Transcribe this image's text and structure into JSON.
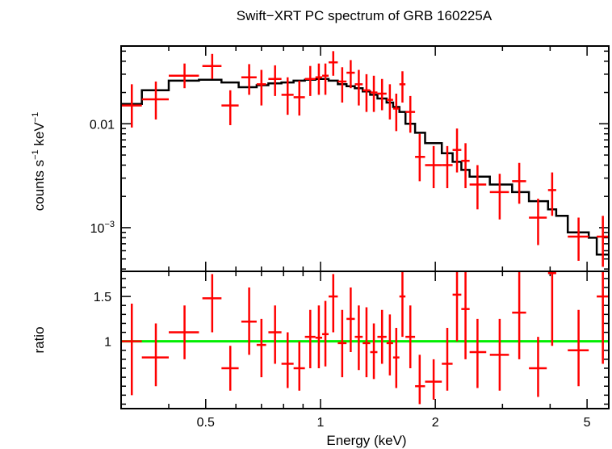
{
  "chart_data": [
    {
      "panel": "spectrum",
      "type": "scatter",
      "title": "Swift−XRT PC spectrum of GRB 160225A",
      "ylabel": {
        "base": "counts s",
        "exp1": "−1",
        "mid": " keV",
        "exp2": "−1"
      },
      "x_scale": "log",
      "y_scale": "log",
      "xlim": [
        0.3,
        5.7
      ],
      "ylim": [
        0.00038,
        0.056
      ],
      "y_tick_labels": [
        {
          "value": 0.01,
          "label": "0.01"
        },
        {
          "value": 0.001,
          "label": "10",
          "sup": "−3"
        }
      ],
      "series": [
        {
          "kind": "data",
          "color": "#ff0000",
          "points": [
            {
              "x": 0.32,
              "xlo": 0.3,
              "xhi": 0.34,
              "y": 0.015,
              "ylo": 0.0092,
              "yhi": 0.024
            },
            {
              "x": 0.37,
              "xlo": 0.34,
              "xhi": 0.4,
              "y": 0.0172,
              "ylo": 0.011,
              "yhi": 0.0255
            },
            {
              "x": 0.44,
              "xlo": 0.4,
              "xhi": 0.48,
              "y": 0.029,
              "ylo": 0.022,
              "yhi": 0.038
            },
            {
              "x": 0.52,
              "xlo": 0.49,
              "xhi": 0.55,
              "y": 0.036,
              "ylo": 0.027,
              "yhi": 0.047
            },
            {
              "x": 0.58,
              "xlo": 0.55,
              "xhi": 0.61,
              "y": 0.015,
              "ylo": 0.0097,
              "yhi": 0.021
            },
            {
              "x": 0.65,
              "xlo": 0.62,
              "xhi": 0.68,
              "y": 0.028,
              "ylo": 0.019,
              "yhi": 0.0375
            },
            {
              "x": 0.7,
              "xlo": 0.68,
              "xhi": 0.72,
              "y": 0.024,
              "ylo": 0.015,
              "yhi": 0.033
            },
            {
              "x": 0.76,
              "xlo": 0.73,
              "xhi": 0.79,
              "y": 0.027,
              "ylo": 0.0185,
              "yhi": 0.0365
            },
            {
              "x": 0.82,
              "xlo": 0.79,
              "xhi": 0.85,
              "y": 0.019,
              "ylo": 0.0122,
              "yhi": 0.028
            },
            {
              "x": 0.88,
              "xlo": 0.85,
              "xhi": 0.91,
              "y": 0.018,
              "ylo": 0.012,
              "yhi": 0.026
            },
            {
              "x": 0.94,
              "xlo": 0.91,
              "xhi": 0.97,
              "y": 0.027,
              "ylo": 0.0185,
              "yhi": 0.036
            },
            {
              "x": 0.99,
              "xlo": 0.97,
              "xhi": 1.01,
              "y": 0.028,
              "ylo": 0.019,
              "yhi": 0.038
            },
            {
              "x": 1.03,
              "xlo": 1.01,
              "xhi": 1.05,
              "y": 0.029,
              "ylo": 0.019,
              "yhi": 0.038
            },
            {
              "x": 1.08,
              "xlo": 1.05,
              "xhi": 1.11,
              "y": 0.039,
              "ylo": 0.029,
              "yhi": 0.05
            },
            {
              "x": 1.14,
              "xlo": 1.11,
              "xhi": 1.17,
              "y": 0.0255,
              "ylo": 0.016,
              "yhi": 0.035
            },
            {
              "x": 1.2,
              "xlo": 1.17,
              "xhi": 1.23,
              "y": 0.031,
              "ylo": 0.022,
              "yhi": 0.041
            },
            {
              "x": 1.26,
              "xlo": 1.23,
              "xhi": 1.29,
              "y": 0.024,
              "ylo": 0.015,
              "yhi": 0.033
            },
            {
              "x": 1.32,
              "xlo": 1.29,
              "xhi": 1.35,
              "y": 0.021,
              "ylo": 0.013,
              "yhi": 0.03
            },
            {
              "x": 1.38,
              "xlo": 1.35,
              "xhi": 1.41,
              "y": 0.02,
              "ylo": 0.013,
              "yhi": 0.029
            },
            {
              "x": 1.45,
              "xlo": 1.41,
              "xhi": 1.49,
              "y": 0.0195,
              "ylo": 0.0135,
              "yhi": 0.027
            },
            {
              "x": 1.52,
              "xlo": 1.49,
              "xhi": 1.55,
              "y": 0.017,
              "ylo": 0.011,
              "yhi": 0.024
            },
            {
              "x": 1.58,
              "xlo": 1.55,
              "xhi": 1.61,
              "y": 0.014,
              "ylo": 0.0085,
              "yhi": 0.0195
            },
            {
              "x": 1.64,
              "xlo": 1.61,
              "xhi": 1.67,
              "y": 0.024,
              "ylo": 0.016,
              "yhi": 0.032
            },
            {
              "x": 1.72,
              "xlo": 1.67,
              "xhi": 1.77,
              "y": 0.013,
              "ylo": 0.0082,
              "yhi": 0.0185
            },
            {
              "x": 1.82,
              "xlo": 1.77,
              "xhi": 1.88,
              "y": 0.0048,
              "ylo": 0.0028,
              "yhi": 0.008
            },
            {
              "x": 1.98,
              "xlo": 1.88,
              "xhi": 2.08,
              "y": 0.004,
              "ylo": 0.0024,
              "yhi": 0.0061
            },
            {
              "x": 2.15,
              "xlo": 2.08,
              "xhi": 2.22,
              "y": 0.004,
              "ylo": 0.0024,
              "yhi": 0.0061
            },
            {
              "x": 2.28,
              "xlo": 2.22,
              "xhi": 2.34,
              "y": 0.0056,
              "ylo": 0.0034,
              "yhi": 0.009
            },
            {
              "x": 2.4,
              "xlo": 2.34,
              "xhi": 2.46,
              "y": 0.0044,
              "ylo": 0.0024,
              "yhi": 0.0065
            },
            {
              "x": 2.58,
              "xlo": 2.46,
              "xhi": 2.72,
              "y": 0.0026,
              "ylo": 0.0015,
              "yhi": 0.004
            },
            {
              "x": 2.95,
              "xlo": 2.78,
              "xhi": 3.12,
              "y": 0.0022,
              "ylo": 0.0012,
              "yhi": 0.0033
            },
            {
              "x": 3.32,
              "xlo": 3.18,
              "xhi": 3.46,
              "y": 0.0028,
              "ylo": 0.0017,
              "yhi": 0.0042
            },
            {
              "x": 3.72,
              "xlo": 3.52,
              "xhi": 3.92,
              "y": 0.00125,
              "ylo": 0.00068,
              "yhi": 0.0019
            },
            {
              "x": 4.05,
              "xlo": 3.95,
              "xhi": 4.15,
              "y": 0.0023,
              "ylo": 0.0013,
              "yhi": 0.0034
            },
            {
              "x": 4.75,
              "xlo": 4.45,
              "xhi": 5.05,
              "y": 0.00082,
              "ylo": 0.00048,
              "yhi": 0.00125
            },
            {
              "x": 5.5,
              "xlo": 5.3,
              "xhi": 5.7,
              "y": 0.00082,
              "ylo": 0.00042,
              "yhi": 0.0013
            }
          ]
        },
        {
          "kind": "model",
          "color": "#000000",
          "step_edges": [
            0.3,
            0.34,
            0.4,
            0.48,
            0.55,
            0.61,
            0.68,
            0.73,
            0.79,
            0.85,
            0.91,
            0.97,
            1.05,
            1.11,
            1.17,
            1.23,
            1.29,
            1.35,
            1.41,
            1.49,
            1.55,
            1.61,
            1.67,
            1.77,
            1.88,
            2.08,
            2.22,
            2.34,
            2.46,
            2.72,
            2.78,
            3.12,
            3.18,
            3.46,
            3.52,
            3.92,
            3.95,
            4.15,
            4.45,
            5.05,
            5.3,
            5.7
          ],
          "step_values": [
            0.0155,
            0.021,
            0.026,
            0.0265,
            0.025,
            0.0225,
            0.0235,
            0.0245,
            0.025,
            0.026,
            0.0265,
            0.027,
            0.026,
            0.024,
            0.023,
            0.022,
            0.0205,
            0.019,
            0.0175,
            0.016,
            0.0145,
            0.013,
            0.01,
            0.0082,
            0.0065,
            0.0052,
            0.0043,
            0.0036,
            0.0031,
            0.0031,
            0.0026,
            0.0026,
            0.0022,
            0.0022,
            0.0018,
            0.0018,
            0.0015,
            0.0013,
            0.0009,
            0.0008,
            0.00055
          ]
        }
      ]
    },
    {
      "panel": "ratio",
      "type": "scatter",
      "xlabel": "Energy (keV)",
      "ylabel": "ratio",
      "x_scale": "log",
      "y_scale": "linear",
      "xlim": [
        0.3,
        5.7
      ],
      "ylim": [
        0.25,
        1.78
      ],
      "x_tick_labels": [
        {
          "value": 0.5,
          "label": "0.5"
        },
        {
          "value": 1,
          "label": "1"
        },
        {
          "value": 2,
          "label": "2"
        },
        {
          "value": 5,
          "label": "5"
        }
      ],
      "y_tick_labels": [
        {
          "value": 1,
          "label": "1"
        },
        {
          "value": 1.5,
          "label": "1.5"
        }
      ],
      "reference_line": {
        "y": 1,
        "color": "#00ee00"
      },
      "series": [
        {
          "kind": "data",
          "color": "#ff0000",
          "points": [
            {
              "x": 0.32,
              "xlo": 0.3,
              "xhi": 0.34,
              "y": 1.0,
              "ylo": 0.4,
              "yhi": 1.42
            },
            {
              "x": 0.37,
              "xlo": 0.34,
              "xhi": 0.4,
              "y": 0.82,
              "ylo": 0.5,
              "yhi": 1.2
            },
            {
              "x": 0.44,
              "xlo": 0.4,
              "xhi": 0.48,
              "y": 1.1,
              "ylo": 0.8,
              "yhi": 1.4
            },
            {
              "x": 0.52,
              "xlo": 0.49,
              "xhi": 0.55,
              "y": 1.48,
              "ylo": 1.1,
              "yhi": 1.75
            },
            {
              "x": 0.58,
              "xlo": 0.55,
              "xhi": 0.61,
              "y": 0.7,
              "ylo": 0.45,
              "yhi": 0.95
            },
            {
              "x": 0.65,
              "xlo": 0.62,
              "xhi": 0.68,
              "y": 1.22,
              "ylo": 0.85,
              "yhi": 1.6
            },
            {
              "x": 0.7,
              "xlo": 0.68,
              "xhi": 0.72,
              "y": 0.96,
              "ylo": 0.6,
              "yhi": 1.25
            },
            {
              "x": 0.76,
              "xlo": 0.73,
              "xhi": 0.79,
              "y": 1.1,
              "ylo": 0.75,
              "yhi": 1.4
            },
            {
              "x": 0.82,
              "xlo": 0.79,
              "xhi": 0.85,
              "y": 0.75,
              "ylo": 0.48,
              "yhi": 1.1
            },
            {
              "x": 0.88,
              "xlo": 0.85,
              "xhi": 0.91,
              "y": 0.7,
              "ylo": 0.45,
              "yhi": 1.0
            },
            {
              "x": 0.94,
              "xlo": 0.91,
              "xhi": 0.97,
              "y": 1.05,
              "ylo": 0.7,
              "yhi": 1.35
            },
            {
              "x": 0.99,
              "xlo": 0.97,
              "xhi": 1.01,
              "y": 1.04,
              "ylo": 0.7,
              "yhi": 1.4
            },
            {
              "x": 1.03,
              "xlo": 1.01,
              "xhi": 1.05,
              "y": 1.08,
              "ylo": 0.72,
              "yhi": 1.45
            },
            {
              "x": 1.08,
              "xlo": 1.05,
              "xhi": 1.11,
              "y": 1.5,
              "ylo": 1.1,
              "yhi": 1.75
            },
            {
              "x": 1.14,
              "xlo": 1.11,
              "xhi": 1.17,
              "y": 0.98,
              "ylo": 0.6,
              "yhi": 1.35
            },
            {
              "x": 1.2,
              "xlo": 1.17,
              "xhi": 1.23,
              "y": 1.25,
              "ylo": 0.88,
              "yhi": 1.6
            },
            {
              "x": 1.26,
              "xlo": 1.23,
              "xhi": 1.29,
              "y": 1.05,
              "ylo": 0.68,
              "yhi": 1.4
            },
            {
              "x": 1.32,
              "xlo": 1.29,
              "xhi": 1.35,
              "y": 0.98,
              "ylo": 0.6,
              "yhi": 1.38
            },
            {
              "x": 1.38,
              "xlo": 1.35,
              "xhi": 1.41,
              "y": 0.88,
              "ylo": 0.58,
              "yhi": 1.2
            },
            {
              "x": 1.45,
              "xlo": 1.41,
              "xhi": 1.49,
              "y": 1.05,
              "ylo": 0.75,
              "yhi": 1.35
            },
            {
              "x": 1.52,
              "xlo": 1.49,
              "xhi": 1.55,
              "y": 0.98,
              "ylo": 0.62,
              "yhi": 1.3
            },
            {
              "x": 1.58,
              "xlo": 1.55,
              "xhi": 1.61,
              "y": 0.82,
              "ylo": 0.48,
              "yhi": 1.15
            },
            {
              "x": 1.64,
              "xlo": 1.61,
              "xhi": 1.67,
              "y": 1.5,
              "ylo": 1.05,
              "yhi": 1.8
            },
            {
              "x": 1.72,
              "xlo": 1.67,
              "xhi": 1.77,
              "y": 1.05,
              "ylo": 0.7,
              "yhi": 1.4
            },
            {
              "x": 1.82,
              "xlo": 1.77,
              "xhi": 1.88,
              "y": 0.5,
              "ylo": 0.3,
              "yhi": 0.85
            },
            {
              "x": 1.98,
              "xlo": 1.88,
              "xhi": 2.08,
              "y": 0.55,
              "ylo": 0.35,
              "yhi": 0.8
            },
            {
              "x": 2.15,
              "xlo": 2.08,
              "xhi": 2.22,
              "y": 0.75,
              "ylo": 0.45,
              "yhi": 1.15
            },
            {
              "x": 2.28,
              "xlo": 2.22,
              "xhi": 2.34,
              "y": 1.52,
              "ylo": 1.0,
              "yhi": 1.78
            },
            {
              "x": 2.4,
              "xlo": 2.34,
              "xhi": 2.46,
              "y": 1.36,
              "ylo": 0.8,
              "yhi": 1.78
            },
            {
              "x": 2.58,
              "xlo": 2.46,
              "xhi": 2.72,
              "y": 0.88,
              "ylo": 0.48,
              "yhi": 1.25
            },
            {
              "x": 2.95,
              "xlo": 2.78,
              "xhi": 3.12,
              "y": 0.85,
              "ylo": 0.45,
              "yhi": 1.25
            },
            {
              "x": 3.32,
              "xlo": 3.18,
              "xhi": 3.46,
              "y": 1.32,
              "ylo": 0.8,
              "yhi": 1.78
            },
            {
              "x": 3.72,
              "xlo": 3.52,
              "xhi": 3.92,
              "y": 0.7,
              "ylo": 0.38,
              "yhi": 1.05
            },
            {
              "x": 4.05,
              "xlo": 3.95,
              "xhi": 4.15,
              "y": 1.76,
              "ylo": 0.95,
              "yhi": 1.78
            },
            {
              "x": 4.75,
              "xlo": 4.45,
              "xhi": 5.05,
              "y": 0.9,
              "ylo": 0.5,
              "yhi": 1.35
            },
            {
              "x": 5.5,
              "xlo": 5.3,
              "xhi": 5.7,
              "y": 1.5,
              "ylo": 0.75,
              "yhi": 1.78
            }
          ]
        }
      ]
    }
  ]
}
